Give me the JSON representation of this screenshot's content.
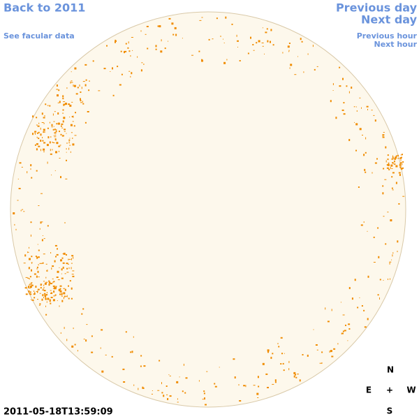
{
  "nav": {
    "back": "Back to 2011",
    "facular": "See facular data",
    "previous_day": "Previous day",
    "next_day": "Next day",
    "previous_hour": "Previous hour",
    "next_hour": "Next hour"
  },
  "compass": {
    "north": "N",
    "east": "E",
    "center": "+",
    "west": "W",
    "south": "S"
  },
  "timestamp": "2011-05-18T13:59:09"
}
